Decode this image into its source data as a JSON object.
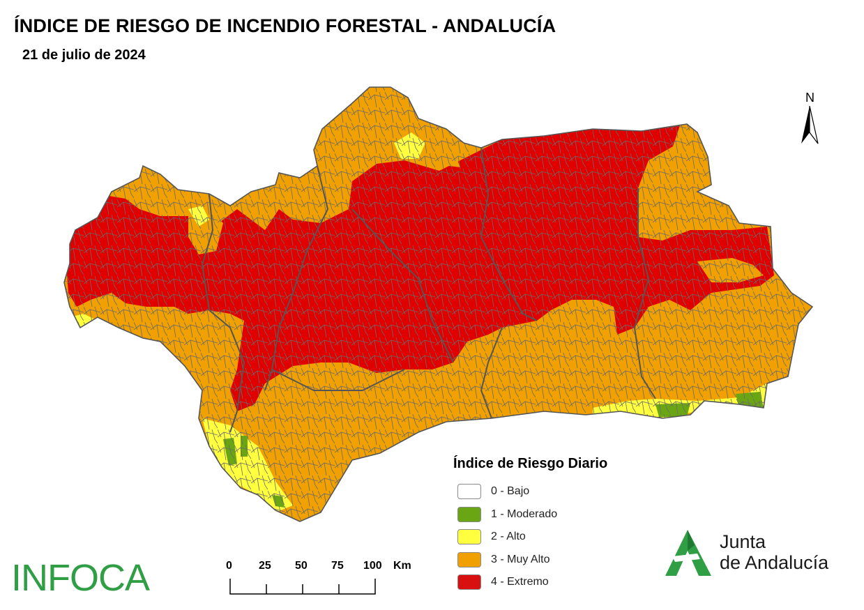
{
  "header": {
    "title": "ÍNDICE DE RIESGO DE INCENDIO FORESTAL - ANDALUCÍA",
    "date": "21 de julio de 2024"
  },
  "legend": {
    "title": "Índice de Riesgo Diario",
    "items": [
      {
        "label": "0 - Bajo",
        "color": "#ffffff"
      },
      {
        "label": "1 - Moderado",
        "color": "#6aa614"
      },
      {
        "label": "2 - Alto",
        "color": "#ffff40"
      },
      {
        "label": "3 - Muy Alto",
        "color": "#f0a000"
      },
      {
        "label": "4 - Extremo",
        "color": "#d81010"
      }
    ]
  },
  "scale_bar": {
    "ticks": [
      "0",
      "25",
      "50",
      "75",
      "100"
    ],
    "unit": "Km"
  },
  "north_arrow": {
    "label": "N",
    "icon": "north-arrow-icon"
  },
  "logos": {
    "left": "INFOCA",
    "right_line1": "Junta",
    "right_line2": "de Andalucía"
  },
  "colors": {
    "region_bg": "#f0a000",
    "extreme": "#e00000",
    "high": "#ffff40",
    "moderate": "#6aa614",
    "boundary": "#555555",
    "junta_green": "#2f9e44"
  }
}
